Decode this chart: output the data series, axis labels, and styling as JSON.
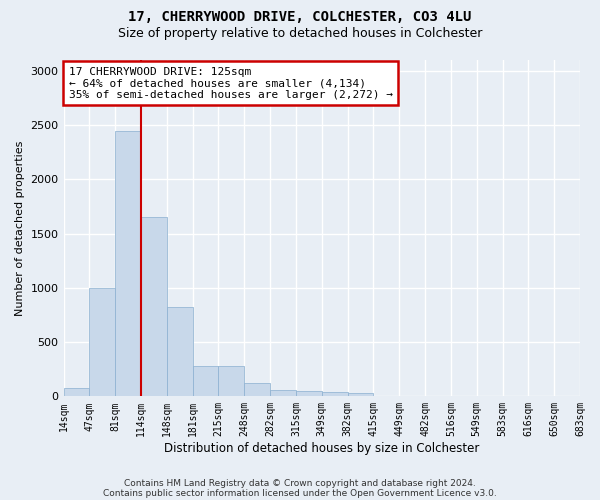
{
  "title1": "17, CHERRYWOOD DRIVE, COLCHESTER, CO3 4LU",
  "title2": "Size of property relative to detached houses in Colchester",
  "xlabel": "Distribution of detached houses by size in Colchester",
  "ylabel": "Number of detached properties",
  "footer1": "Contains HM Land Registry data © Crown copyright and database right 2024.",
  "footer2": "Contains public sector information licensed under the Open Government Licence v3.0.",
  "bin_labels": [
    "14sqm",
    "47sqm",
    "81sqm",
    "114sqm",
    "148sqm",
    "181sqm",
    "215sqm",
    "248sqm",
    "282sqm",
    "315sqm",
    "349sqm",
    "382sqm",
    "415sqm",
    "449sqm",
    "482sqm",
    "516sqm",
    "549sqm",
    "583sqm",
    "616sqm",
    "650sqm",
    "683sqm"
  ],
  "bar_values": [
    80,
    1000,
    2450,
    1650,
    825,
    280,
    280,
    120,
    55,
    50,
    40,
    30,
    5,
    0,
    3,
    0,
    0,
    0,
    0,
    0
  ],
  "bar_color": "#c8d8ea",
  "bar_edge_color": "#8aafd0",
  "annotation_text": "17 CHERRYWOOD DRIVE: 125sqm\n← 64% of detached houses are smaller (4,134)\n35% of semi-detached houses are larger (2,272) →",
  "annotation_box_color": "#ffffff",
  "annotation_box_edge_color": "#cc0000",
  "red_line_x": 3.0,
  "ylim": [
    0,
    3100
  ],
  "yticks": [
    0,
    500,
    1000,
    1500,
    2000,
    2500,
    3000
  ],
  "bg_color": "#e8eef5",
  "grid_color": "#ffffff",
  "bar_width": 1.0,
  "n_bars": 20
}
